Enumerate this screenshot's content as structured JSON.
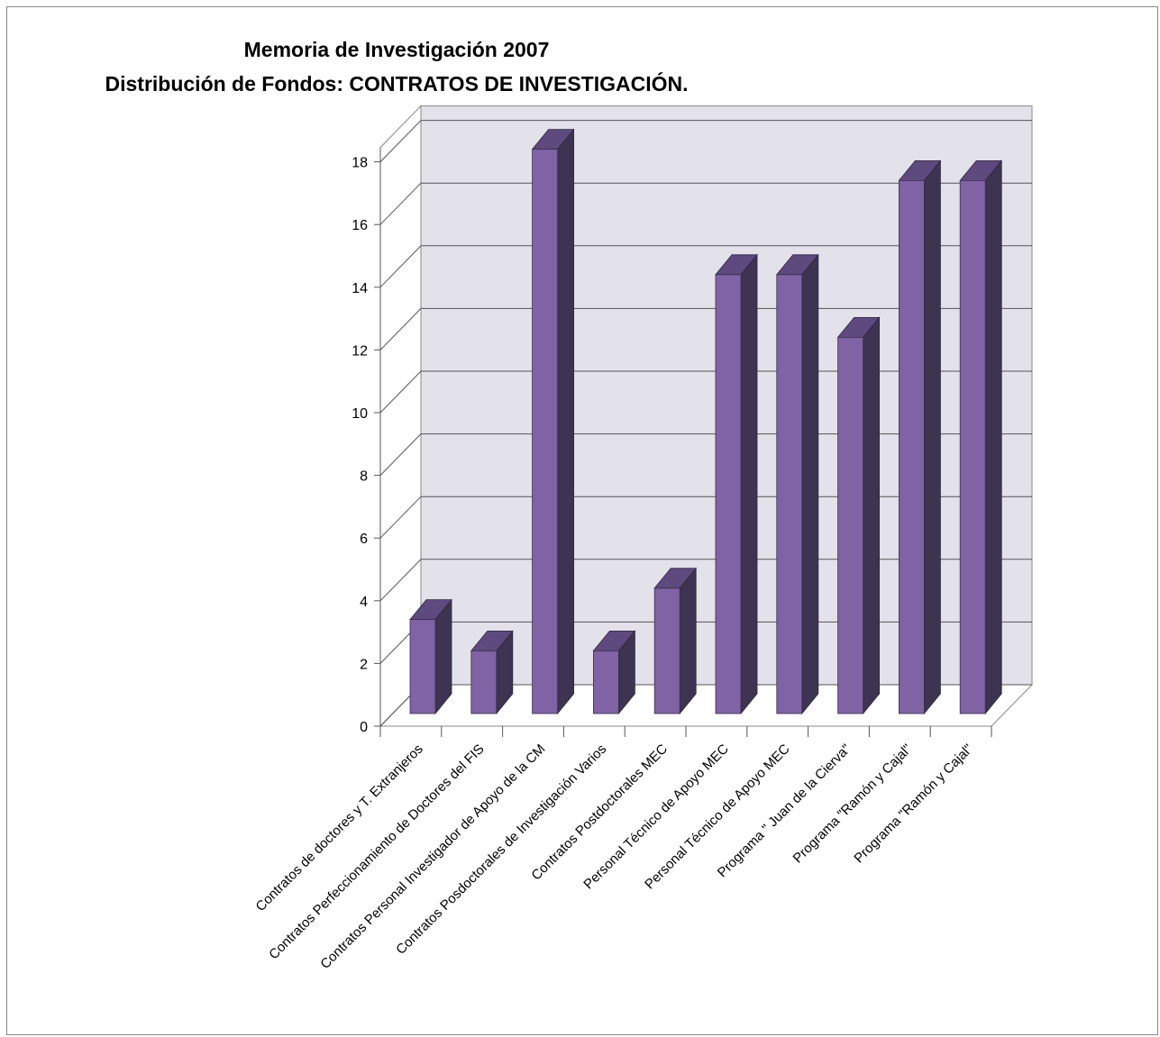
{
  "chart_data": {
    "type": "bar",
    "title": "Memoria de Investigación 2007",
    "subtitle": "Distribución de Fondos: CONTRATOS DE INVESTIGACIÓN.",
    "xlabel": "",
    "ylabel": "",
    "ylim": [
      0,
      18
    ],
    "yticks": [
      0,
      2,
      4,
      6,
      8,
      10,
      12,
      14,
      16,
      18
    ],
    "grid": true,
    "legend": "none",
    "bar_color": "#7f63a4",
    "categories": [
      "Contratos de doctores y T. Extranjeros",
      "Contratos Perfeccionamiento de Doctores del FIS",
      "Contratos Personal Investigador de Apoyo de la CM",
      "Contratos Posdoctorales de Investigación Varios",
      "Contratos Postdoctorales MEC",
      "Personal Técnico de Apoyo MEC",
      "Personal Técnico de Apoyo MEC",
      "Programa \" Juan de la Cierva\"",
      "Programa \"Ramón y Cajal\"",
      "Programa \"Ramón y Cajal\""
    ],
    "values": [
      3,
      2,
      18,
      2,
      4,
      14,
      14,
      12,
      17,
      17
    ]
  }
}
